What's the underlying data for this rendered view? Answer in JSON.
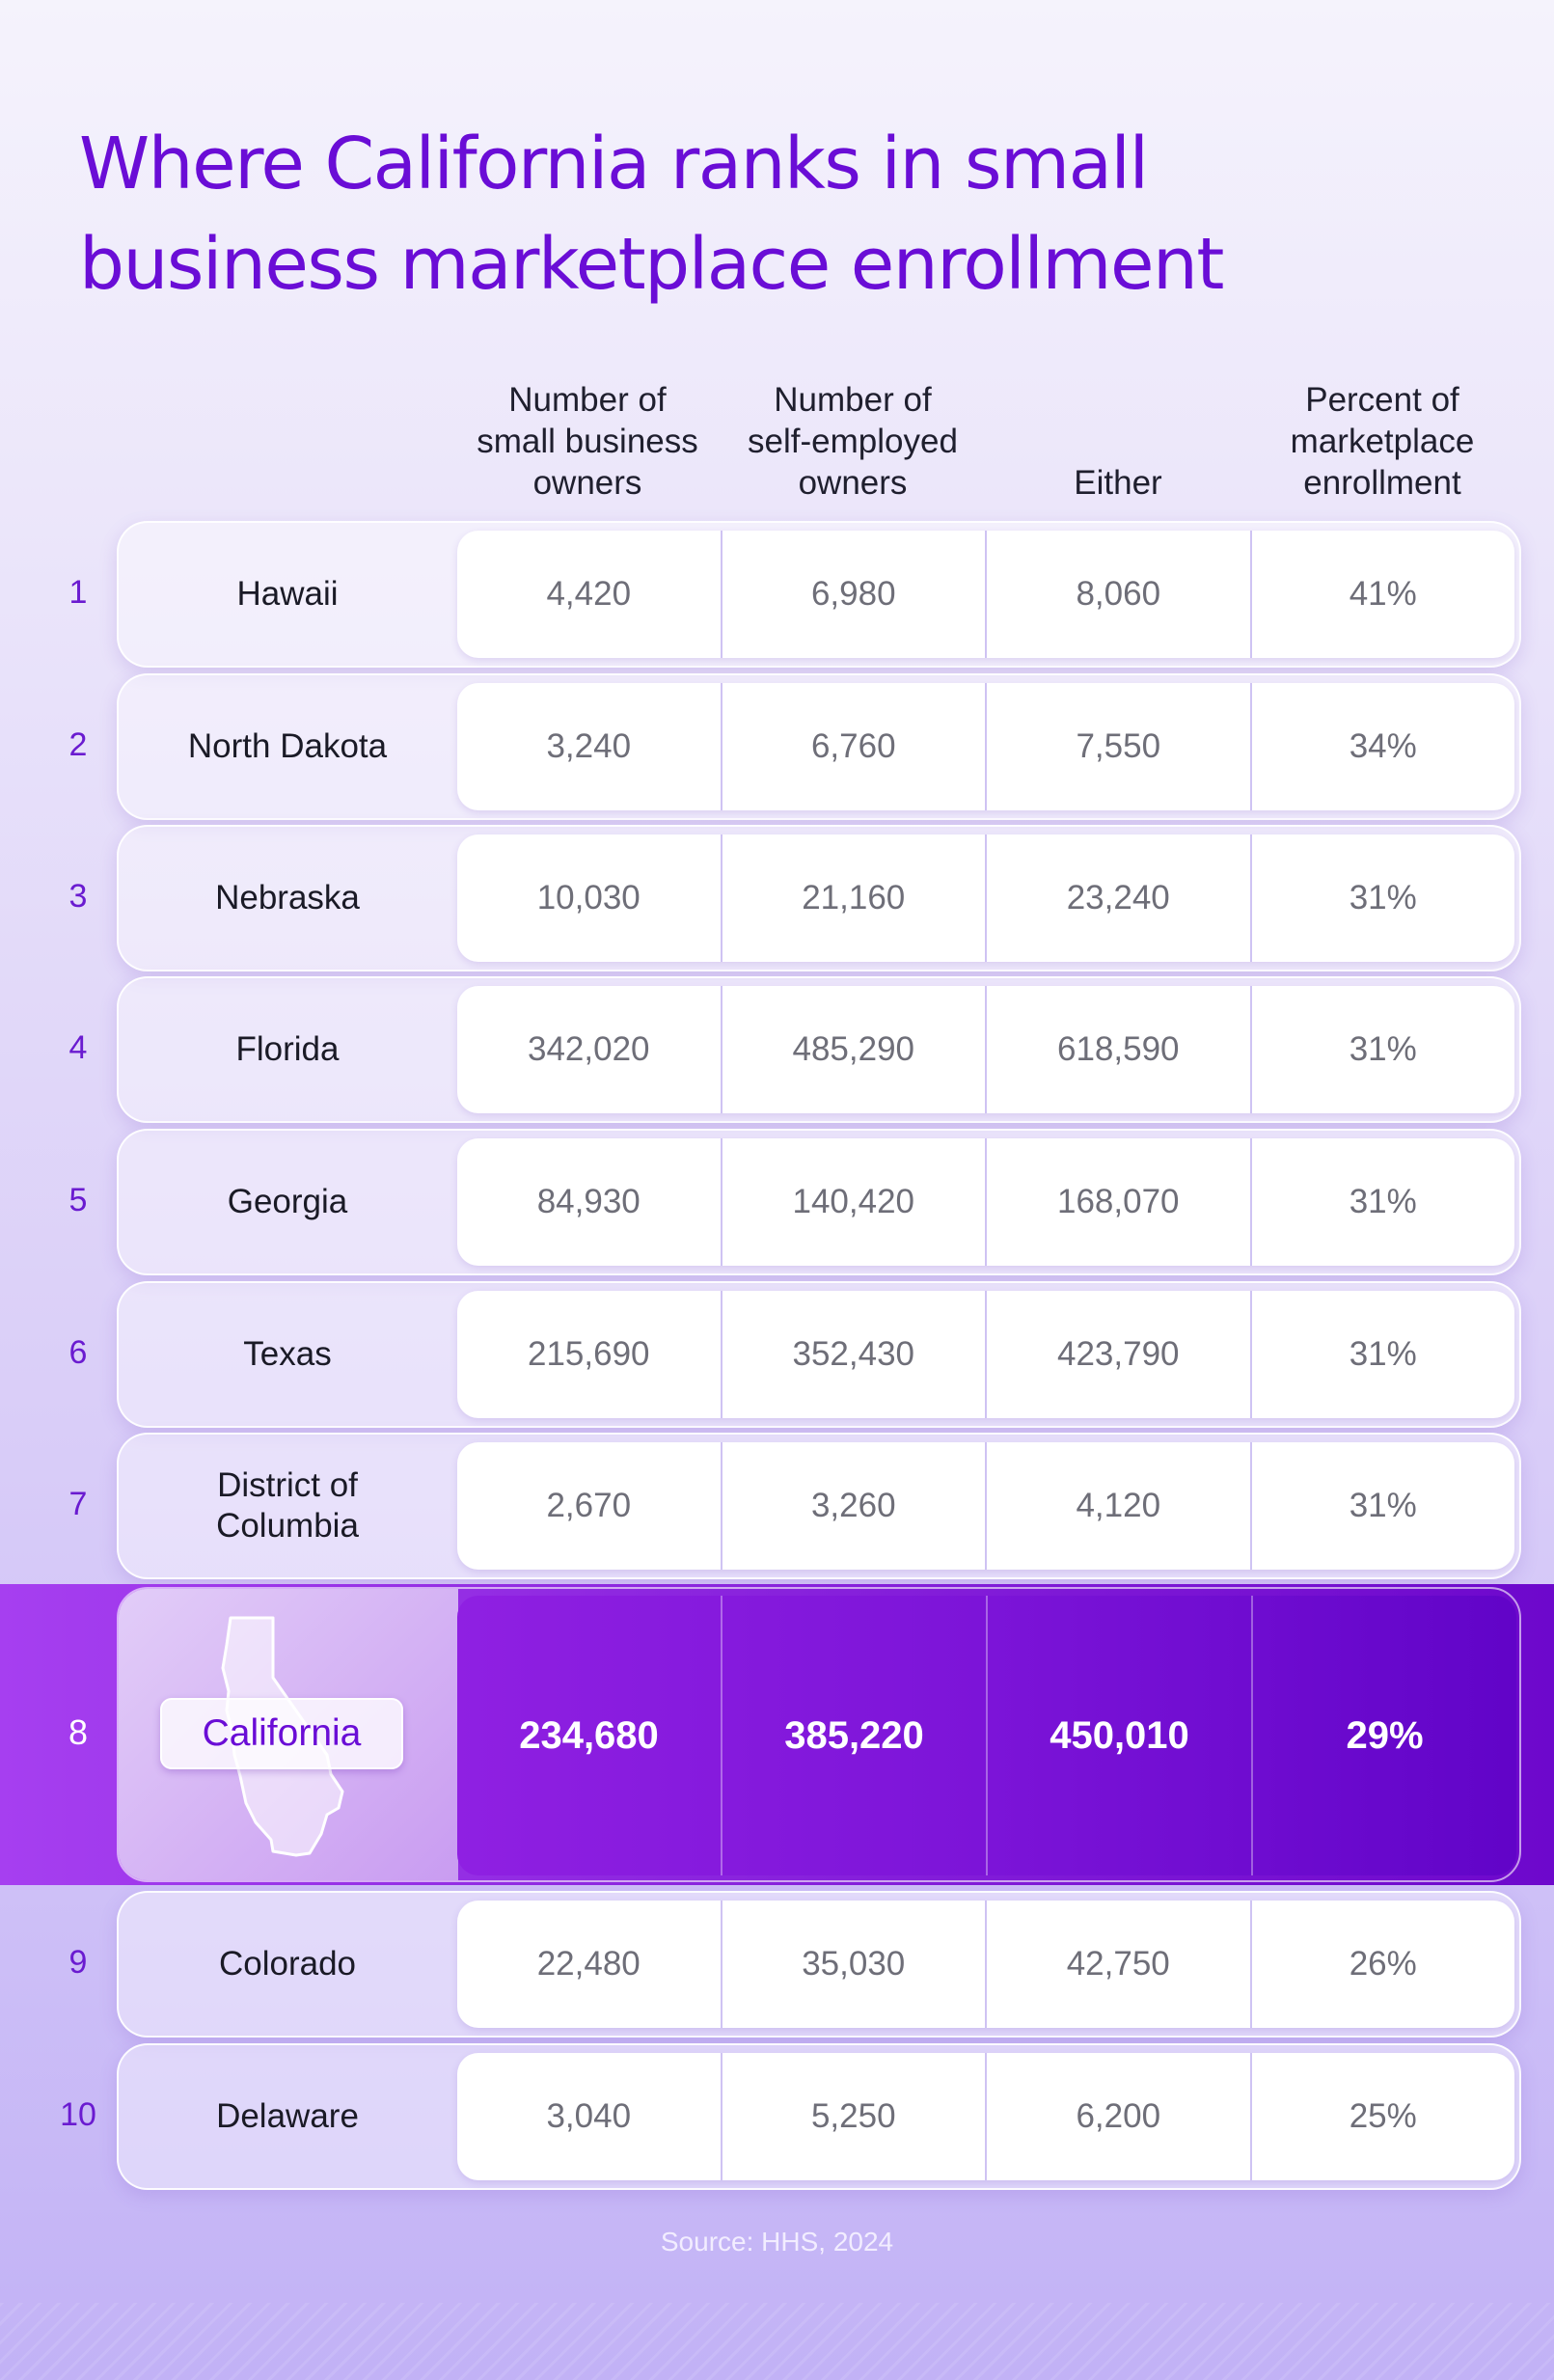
{
  "title": "Where California ranks in small business marketplace enrollment",
  "columns": [
    "Number of\nsmall business\nowners",
    "Number of\nself-employed\nowners",
    "Either",
    "Percent of\nmarketplace\nenrollment"
  ],
  "rows": [
    {
      "rank": "1",
      "state": "Hawaii",
      "small_business": "4,420",
      "self_employed": "6,980",
      "either": "8,060",
      "percent": "41%"
    },
    {
      "rank": "2",
      "state": "North Dakota",
      "small_business": "3,240",
      "self_employed": "6,760",
      "either": "7,550",
      "percent": "34%"
    },
    {
      "rank": "3",
      "state": "Nebraska",
      "small_business": "10,030",
      "self_employed": "21,160",
      "either": "23,240",
      "percent": "31%"
    },
    {
      "rank": "4",
      "state": "Florida",
      "small_business": "342,020",
      "self_employed": "485,290",
      "either": "618,590",
      "percent": "31%"
    },
    {
      "rank": "5",
      "state": "Georgia",
      "small_business": "84,930",
      "self_employed": "140,420",
      "either": "168,070",
      "percent": "31%"
    },
    {
      "rank": "6",
      "state": "Texas",
      "small_business": "215,690",
      "self_employed": "352,430",
      "either": "423,790",
      "percent": "31%"
    },
    {
      "rank": "7",
      "state": "District of\nColumbia",
      "small_business": "2,670",
      "self_employed": "3,260",
      "either": "4,120",
      "percent": "31%"
    },
    {
      "rank": "8",
      "state": "California",
      "small_business": "234,680",
      "self_employed": "385,220",
      "either": "450,010",
      "percent": "29%",
      "highlight": true
    },
    {
      "rank": "9",
      "state": "Colorado",
      "small_business": "22,480",
      "self_employed": "35,030",
      "either": "42,750",
      "percent": "26%"
    },
    {
      "rank": "10",
      "state": "Delaware",
      "small_business": "3,040",
      "self_employed": "5,250",
      "either": "6,200",
      "percent": "25%"
    }
  ],
  "highlight_icon": "california-state-shape-icon",
  "colors": {
    "accent": "#6a0dd6",
    "highlight_start": "#a63ff0",
    "highlight_end": "#6104c8",
    "cell_bg": "#ffffff"
  },
  "source": "Source: HHS, 2024"
}
